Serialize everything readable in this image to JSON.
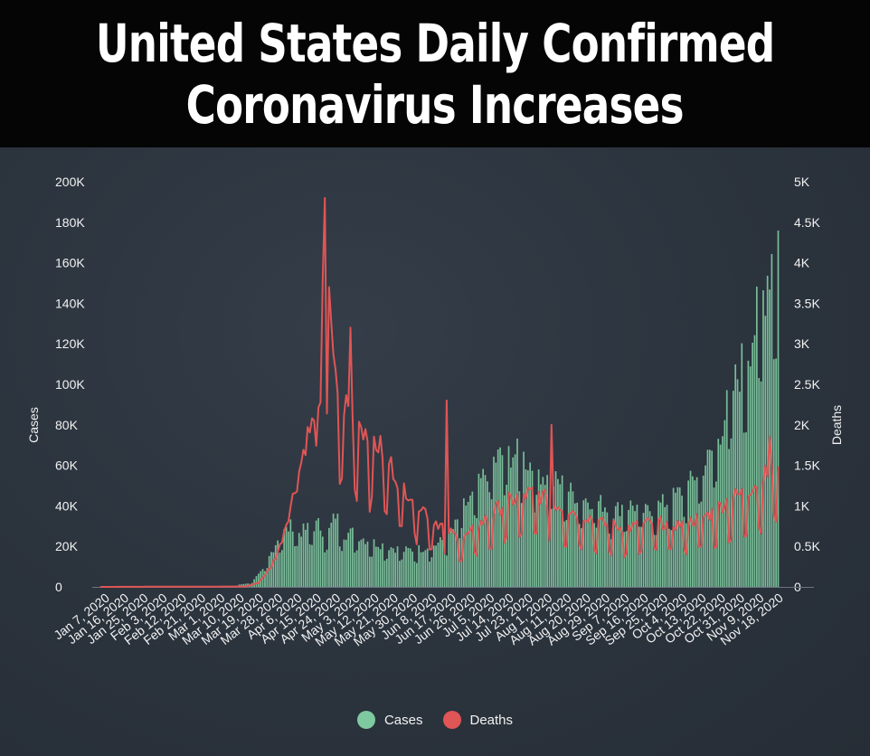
{
  "header": {
    "title_line1": "United States Daily Confirmed",
    "title_line2": "Coronavirus Increases"
  },
  "chart_data": {
    "type": "bar+line",
    "title": "United States Daily Confirmed Coronavirus Increases",
    "ylabel_left": "Cases",
    "ylabel_right": "Deaths",
    "ylim_left": [
      0,
      200000
    ],
    "ylim_right": [
      0,
      5000
    ],
    "y_ticks_left": [
      "200K",
      "180K",
      "160K",
      "140K",
      "120K",
      "100K",
      "80K",
      "60K",
      "40K",
      "20K",
      "0"
    ],
    "y_ticks_right": [
      "5K",
      "4.5K",
      "4K",
      "3.5K",
      "3K",
      "2.5K",
      "2K",
      "1.5K",
      "1K",
      "0.5K",
      "0"
    ],
    "x_tick_labels": [
      "Jan 7, 2020",
      "Jan 16, 2020",
      "Jan 25, 2020",
      "Feb 3, 2020",
      "Feb 12, 2020",
      "Feb 21, 2020",
      "Mar 1, 2020",
      "Mar 10, 2020",
      "Mar 19, 2020",
      "Mar 28, 2020",
      "Apr 6, 2020",
      "Apr 15, 2020",
      "Apr 24, 2020",
      "May 3, 2020",
      "May 12, 2020",
      "May 21, 2020",
      "May 30, 2020",
      "Jun 8, 2020",
      "Jun 17, 2020",
      "Jun 26, 2020",
      "Jul 5, 2020",
      "Jul 14, 2020",
      "Jul 23, 2020",
      "Aug 1, 2020",
      "Aug 11, 2020",
      "Aug 20, 2020",
      "Aug 29, 2020",
      "Sep 7, 2020",
      "Sep 16, 2020",
      "Sep 25, 2020",
      "Oct 4, 2020",
      "Oct 13, 2020",
      "Oct 22, 2020",
      "Oct 31, 2020",
      "Nov 9, 2020",
      "Nov 18, 2020"
    ],
    "start_date": "Jan 7, 2020",
    "day_step": 1,
    "series": [
      {
        "name": "Cases",
        "color": "#7fc9a0",
        "render": "bar",
        "axis": "left",
        "anchors": [
          [
            0,
            0
          ],
          [
            57,
            50
          ],
          [
            63,
            700
          ],
          [
            70,
            2000
          ],
          [
            76,
            8000
          ],
          [
            80,
            17000
          ],
          [
            84,
            26000
          ],
          [
            87,
            28000
          ],
          [
            90,
            31000
          ],
          [
            93,
            27000
          ],
          [
            97,
            29000
          ],
          [
            102,
            31000
          ],
          [
            106,
            25000
          ],
          [
            110,
            36000
          ],
          [
            114,
            26000
          ],
          [
            118,
            27000
          ],
          [
            123,
            24000
          ],
          [
            128,
            22000
          ],
          [
            135,
            20000
          ],
          [
            142,
            18000
          ],
          [
            150,
            19000
          ],
          [
            157,
            21000
          ],
          [
            163,
            25000
          ],
          [
            167,
            32000
          ],
          [
            170,
            40000
          ],
          [
            174,
            44000
          ],
          [
            178,
            52000
          ],
          [
            182,
            60000
          ],
          [
            186,
            64000
          ],
          [
            190,
            66000
          ],
          [
            194,
            66000
          ],
          [
            198,
            64000
          ],
          [
            202,
            60000
          ],
          [
            206,
            57000
          ],
          [
            210,
            52000
          ],
          [
            215,
            52000
          ],
          [
            220,
            47000
          ],
          [
            225,
            44000
          ],
          [
            230,
            43000
          ],
          [
            235,
            41000
          ],
          [
            240,
            37000
          ],
          [
            245,
            41000
          ],
          [
            250,
            40000
          ],
          [
            255,
            37000
          ],
          [
            260,
            40000
          ],
          [
            265,
            42000
          ],
          [
            270,
            46000
          ],
          [
            275,
            50000
          ],
          [
            280,
            58000
          ],
          [
            285,
            64000
          ],
          [
            290,
            78000
          ],
          [
            295,
            95000
          ],
          [
            300,
            110000
          ],
          [
            305,
            125000
          ],
          [
            310,
            145000
          ],
          [
            314,
            165000
          ],
          [
            317,
            175000
          ]
        ],
        "weekly_dip": 0.7
      },
      {
        "name": "Deaths",
        "color": "#e05555",
        "render": "line",
        "axis": "right",
        "anchors": [
          [
            0,
            0
          ],
          [
            68,
            5
          ],
          [
            74,
            50
          ],
          [
            80,
            250
          ],
          [
            84,
            500
          ],
          [
            88,
            900
          ],
          [
            92,
            1300
          ],
          [
            96,
            1800
          ],
          [
            99,
            2000
          ],
          [
            101,
            1900
          ],
          [
            103,
            2150
          ],
          [
            105,
            4800
          ],
          [
            107,
            3300
          ],
          [
            110,
            2500
          ],
          [
            113,
            2300
          ],
          [
            116,
            2200
          ],
          [
            120,
            2100
          ],
          [
            125,
            1900
          ],
          [
            130,
            1750
          ],
          [
            135,
            1550
          ],
          [
            140,
            1300
          ],
          [
            145,
            1150
          ],
          [
            150,
            1000
          ],
          [
            155,
            850
          ],
          [
            160,
            750
          ],
          [
            165,
            650
          ],
          [
            170,
            600
          ],
          [
            175,
            720
          ],
          [
            180,
            830
          ],
          [
            185,
            950
          ],
          [
            190,
            1050
          ],
          [
            195,
            1100
          ],
          [
            200,
            1150
          ],
          [
            205,
            1150
          ],
          [
            210,
            1050
          ],
          [
            215,
            1000
          ],
          [
            220,
            950
          ],
          [
            225,
            900
          ],
          [
            230,
            850
          ],
          [
            235,
            780
          ],
          [
            240,
            760
          ],
          [
            245,
            720
          ],
          [
            250,
            750
          ],
          [
            255,
            780
          ],
          [
            260,
            800
          ],
          [
            265,
            780
          ],
          [
            270,
            770
          ],
          [
            275,
            800
          ],
          [
            280,
            850
          ],
          [
            285,
            900
          ],
          [
            290,
            1000
          ],
          [
            295,
            1100
          ],
          [
            300,
            1150
          ],
          [
            305,
            1250
          ],
          [
            310,
            1350
          ],
          [
            314,
            1450
          ],
          [
            317,
            1600
          ]
        ],
        "spikes": [
          [
            105,
            4800
          ],
          [
            107,
            3700
          ],
          [
            117,
            3200
          ],
          [
            162,
            2300
          ],
          [
            211,
            2000
          ],
          [
            313,
            1850
          ]
        ],
        "weekly_dip": 0.55
      }
    ],
    "legend": [
      {
        "label": "Cases",
        "color": "#7fc9a0"
      },
      {
        "label": "Deaths",
        "color": "#e05555"
      }
    ],
    "legend_position": "bottom-center"
  }
}
